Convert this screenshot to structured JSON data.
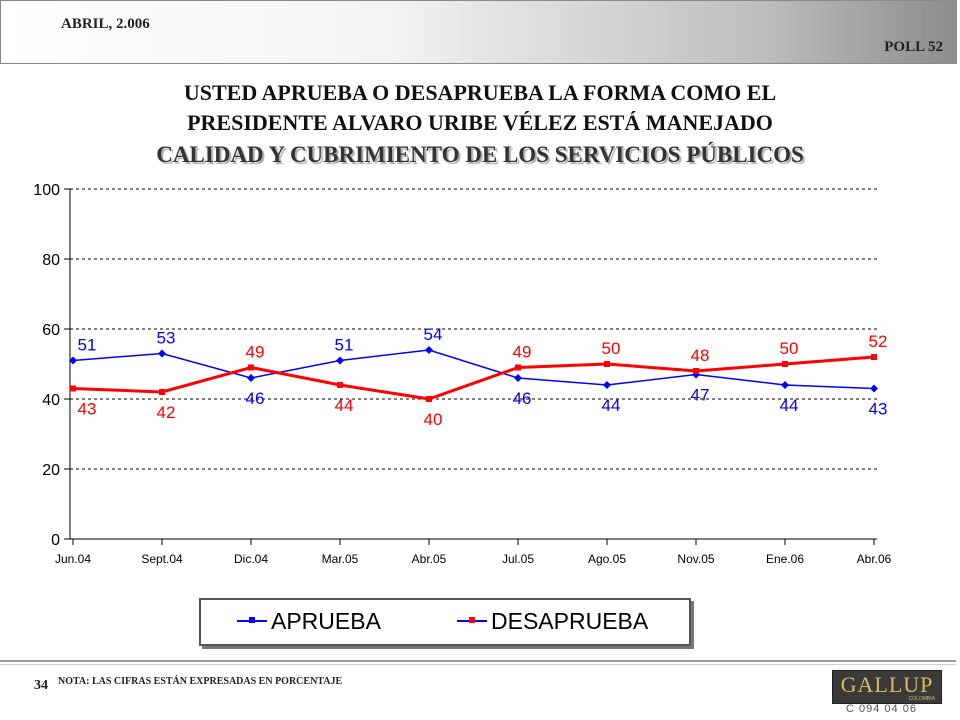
{
  "header": {
    "date": "ABRIL, 2.006",
    "poll": "POLL 52"
  },
  "title": {
    "line1": "USTED APRUEBA O DESAPRUEBA LA FORMA COMO EL",
    "line2": "PRESIDENTE ALVARO URIBE VÉLEZ ESTÁ MANEJADO",
    "line3": "CALIDAD Y CUBRIMIENTO DE LOS SERVICIOS PÚBLICOS"
  },
  "chart_data": {
    "type": "line",
    "categories": [
      "Jun.04",
      "Sept.04",
      "Dic.04",
      "Mar.05",
      "Abr.05",
      "Jul.05",
      "Ago.05",
      "Nov.05",
      "Ene.06",
      "Abr.06"
    ],
    "series": [
      {
        "name": "APRUEBA",
        "color": "#0000ff",
        "values": [
          51,
          53,
          46,
          51,
          54,
          46,
          44,
          47,
          44,
          43
        ]
      },
      {
        "name": "DESAPRUEBA",
        "color": "#ff0000",
        "values": [
          43,
          42,
          49,
          44,
          40,
          49,
          50,
          48,
          50,
          52
        ]
      }
    ],
    "ylim": [
      0,
      100
    ],
    "yticks": [
      0,
      20,
      40,
      60,
      80,
      100
    ],
    "grid": true,
    "legend": "bottom"
  },
  "legend": {
    "aprueba": "APRUEBA",
    "desaprueba": "DESAPRUEBA"
  },
  "footer": {
    "page_number": "34",
    "note": "NOTA: LAS CIFRAS ESTÁN EXPRESADAS EN PORCENTAJE",
    "logo": "GALLUP",
    "logo_sub": "COLOMBIA",
    "code": "C 094 04 06"
  }
}
